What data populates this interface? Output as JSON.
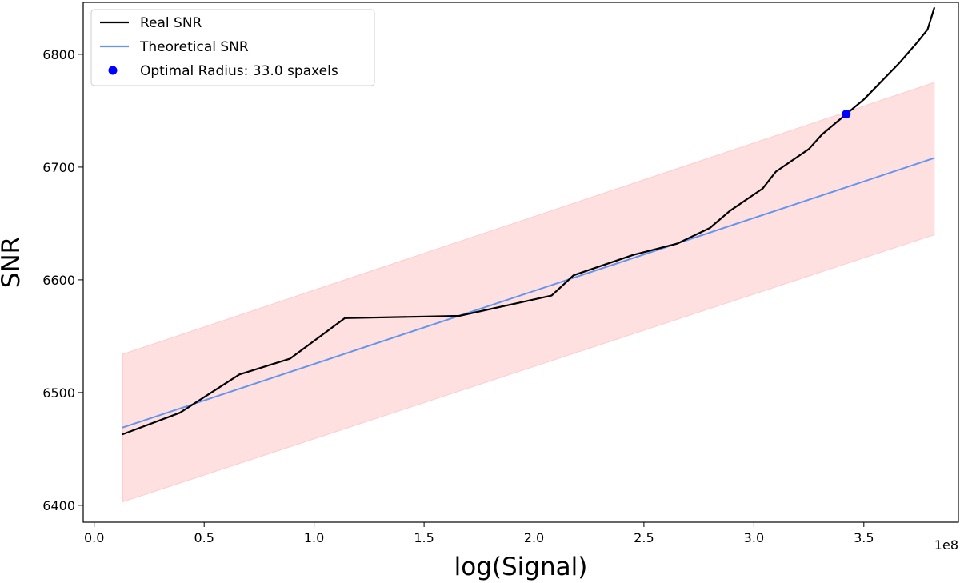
{
  "chart_data": {
    "type": "line",
    "title": "",
    "xlabel": "log(Signal)",
    "ylabel": "SNR",
    "x_offset_label": "1e8",
    "xlim": [
      -0.05,
      3.93
    ],
    "ylim": [
      6385,
      6846
    ],
    "x_ticks": [
      0.0,
      0.5,
      1.0,
      1.5,
      2.0,
      2.5,
      3.0,
      3.5
    ],
    "x_tick_labels": [
      "0.0",
      "0.5",
      "1.0",
      "1.5",
      "2.0",
      "2.5",
      "3.0",
      "3.5"
    ],
    "y_ticks": [
      6400,
      6500,
      6600,
      6700,
      6800
    ],
    "y_tick_labels": [
      "6400",
      "6500",
      "6600",
      "6700",
      "6800"
    ],
    "grid": false,
    "legend_position": "top-left",
    "series": [
      {
        "name": "Real SNR",
        "color": "#000000",
        "x": [
          0.13,
          0.39,
          0.66,
          0.89,
          1.14,
          1.66,
          2.08,
          2.18,
          2.45,
          2.65,
          2.8,
          2.89,
          3.04,
          3.1,
          3.25,
          3.31,
          3.42,
          3.5,
          3.58,
          3.66,
          3.74,
          3.79,
          3.82
        ],
        "y": [
          6463,
          6482,
          6516,
          6530,
          6566,
          6568,
          6586,
          6604,
          6622,
          6632,
          6646,
          6661,
          6681,
          6696,
          6716,
          6729,
          6747,
          6760,
          6776,
          6792,
          6810,
          6822,
          6841
        ]
      },
      {
        "name": "Theoretical SNR",
        "color": "#6495ed",
        "x": [
          0.13,
          3.82
        ],
        "y": [
          6469,
          6708
        ]
      }
    ],
    "band": {
      "name": "Theoretical SNR band",
      "color": "#ffb6b6",
      "x": [
        0.13,
        3.82
      ],
      "lower": [
        6403,
        6640
      ],
      "upper": [
        6534,
        6775
      ]
    },
    "points": [
      {
        "name": "Optimal Radius: 33.0 spaxels",
        "color": "#0000ff",
        "x": 3.42,
        "y": 6747
      }
    ]
  }
}
